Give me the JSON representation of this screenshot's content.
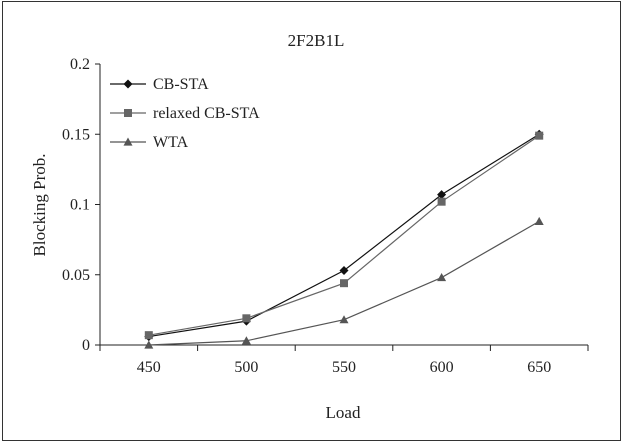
{
  "chart_data": {
    "type": "line",
    "title": "2F2B1L",
    "xlabel": "Load",
    "ylabel": "Blocking Prob.",
    "categories": [
      "450",
      "500",
      "550",
      "600",
      "650"
    ],
    "x": [
      450,
      500,
      550,
      600,
      650
    ],
    "ylim": [
      0,
      0.2
    ],
    "yticks": [
      "0",
      "0.05",
      "0.1",
      "0.15",
      "0.2"
    ],
    "ytick_values": [
      0,
      0.05,
      0.1,
      0.15,
      0.2
    ],
    "grid": false,
    "legend_position": "top-left",
    "series": [
      {
        "name": "CB-STA",
        "marker": "diamond",
        "color": "#111111",
        "values": [
          0.006,
          0.017,
          0.053,
          0.107,
          0.15
        ]
      },
      {
        "name": "relaxed CB-STA",
        "marker": "square",
        "color": "#666666",
        "values": [
          0.007,
          0.019,
          0.044,
          0.102,
          0.149
        ]
      },
      {
        "name": "WTA",
        "marker": "triangle",
        "color": "#555555",
        "values": [
          0.0,
          0.003,
          0.018,
          0.048,
          0.088
        ]
      }
    ]
  }
}
